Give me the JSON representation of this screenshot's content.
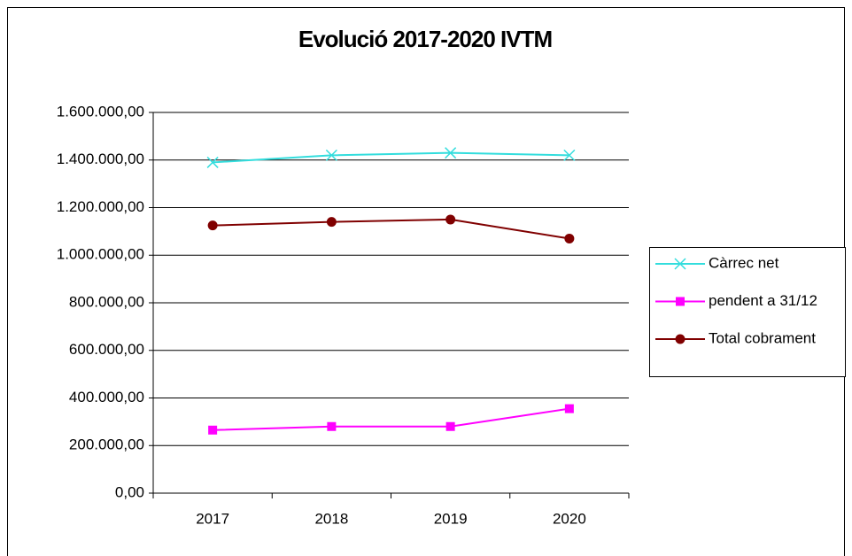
{
  "chart_data": {
    "type": "line",
    "title": "Evolució 2017-2020 IVTM",
    "categories": [
      "2017",
      "2018",
      "2019",
      "2020"
    ],
    "series": [
      {
        "name": "Càrrec net",
        "color": "#33dddd",
        "marker": "x",
        "values": [
          1390000,
          1420000,
          1430000,
          1420000
        ]
      },
      {
        "name": "pendent a 31/12",
        "color": "#ff00ff",
        "marker": "square",
        "values": [
          265000,
          280000,
          280000,
          355000
        ]
      },
      {
        "name": "Total cobrament",
        "color": "#800000",
        "marker": "circle",
        "values": [
          1125000,
          1140000,
          1150000,
          1070000
        ]
      }
    ],
    "ylim": [
      0,
      1600000
    ],
    "yticks": [
      {
        "value": 0,
        "label": "0,00"
      },
      {
        "value": 200000,
        "label": "200.000,00"
      },
      {
        "value": 400000,
        "label": "400.000,00"
      },
      {
        "value": 600000,
        "label": "600.000,00"
      },
      {
        "value": 800000,
        "label": "800.000,00"
      },
      {
        "value": 1000000,
        "label": "1.000.000,00"
      },
      {
        "value": 1200000,
        "label": "1.200.000,00"
      },
      {
        "value": 1400000,
        "label": "1.400.000,00"
      },
      {
        "value": 1600000,
        "label": "1.600.000,00"
      }
    ],
    "grid": true,
    "legend": "right"
  }
}
